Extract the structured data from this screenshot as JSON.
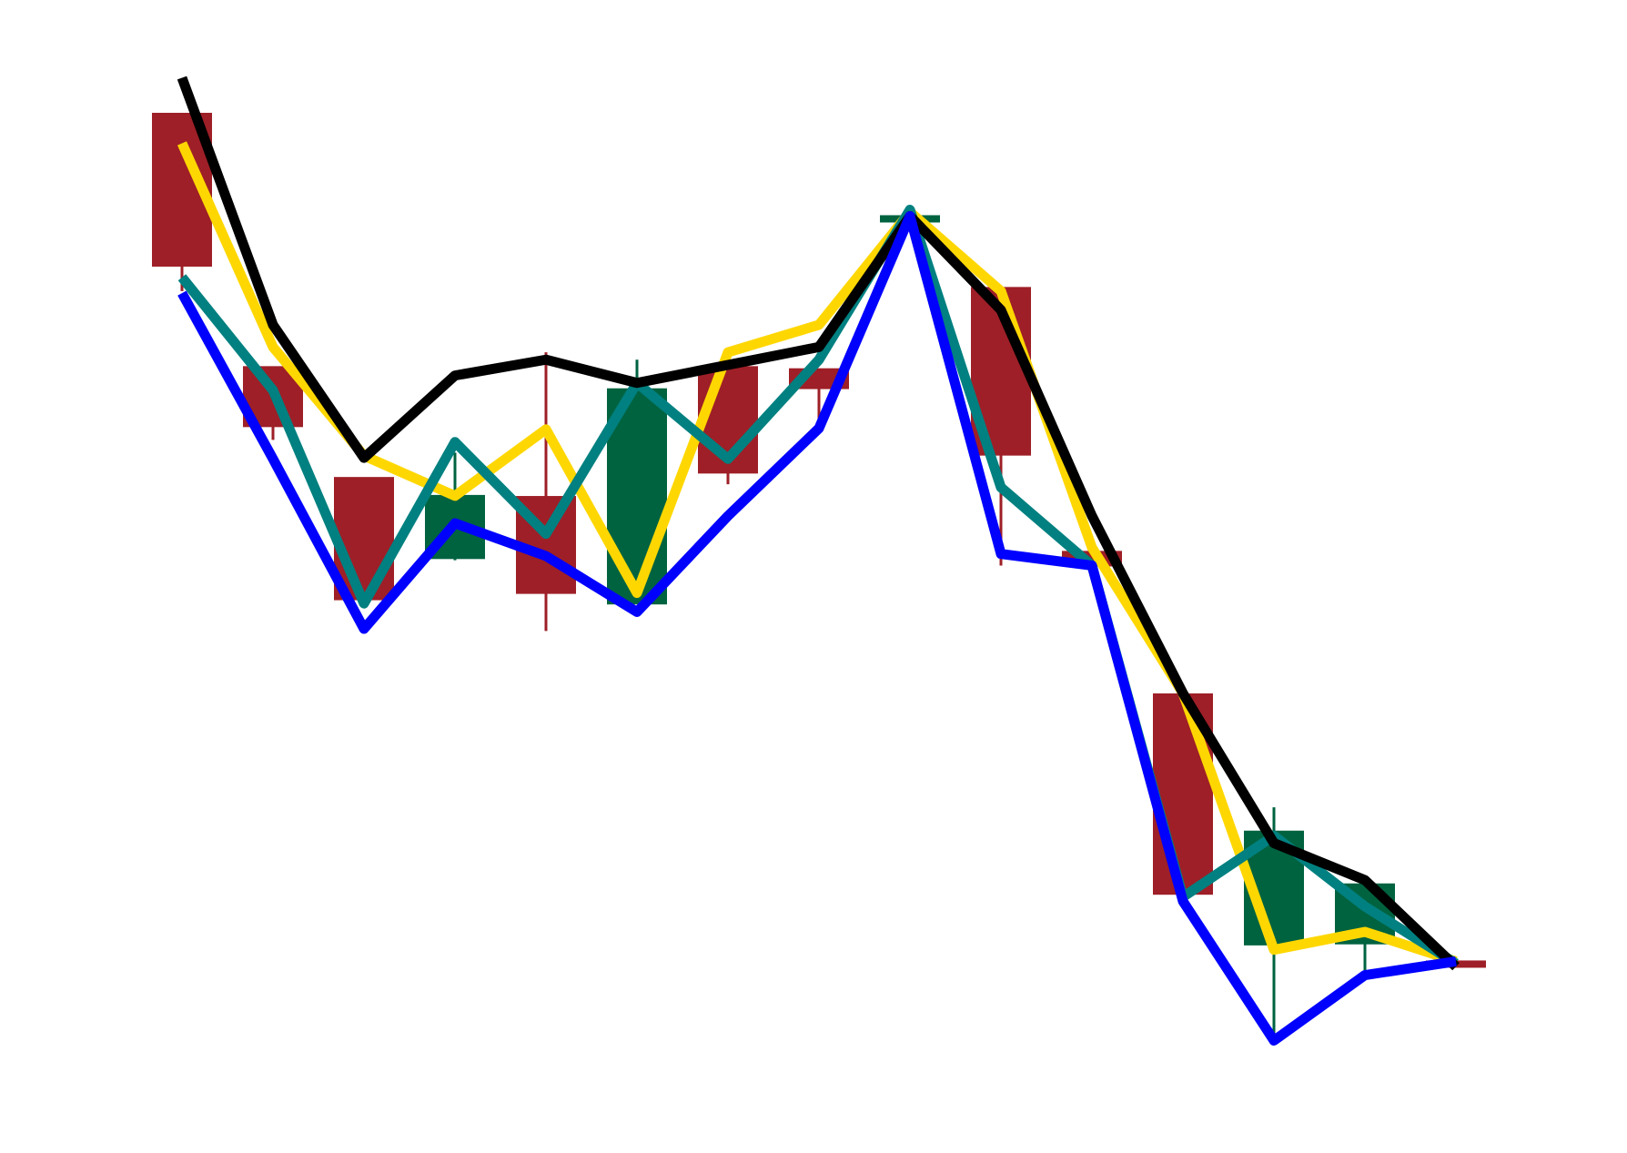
{
  "chart_data": {
    "type": "candlestick",
    "title": "",
    "xlabel": "",
    "ylabel": "",
    "axes_visible": false,
    "grid": false,
    "legend": "none",
    "ylim": [
      0,
      100
    ],
    "colors": {
      "up": "#006340",
      "down": "#9e1f27",
      "line_yellow": "#ffd700",
      "line_teal": "#008080",
      "line_black": "#000000",
      "line_blue": "#0000ff"
    },
    "candles": [
      {
        "open": 94.4,
        "high": 94.4,
        "low": 77.6,
        "close": 80.0
      },
      {
        "open": 70.4,
        "high": 70.4,
        "low": 63.5,
        "close": 64.8
      },
      {
        "open": 59.9,
        "high": 59.9,
        "low": 48.0,
        "close": 48.4
      },
      {
        "open": 52.3,
        "high": 62.3,
        "low": 52.1,
        "close": 58.2
      },
      {
        "open": 58.1,
        "high": 71.8,
        "low": 45.4,
        "close": 49.0
      },
      {
        "open": 48.0,
        "high": 71.1,
        "low": 48.0,
        "close": 68.3
      },
      {
        "open": 70.4,
        "high": 70.4,
        "low": 59.3,
        "close": 60.4
      },
      {
        "open": 70.2,
        "high": 70.2,
        "low": 65.5,
        "close": 68.4
      },
      {
        "open": 84.2,
        "high": 85.1,
        "low": 83.6,
        "close": 84.7
      },
      {
        "open": 77.9,
        "high": 77.9,
        "low": 51.6,
        "close": 62.1
      },
      {
        "open": 52.9,
        "high": 54.3,
        "low": 51.6,
        "close": 51.6
      },
      {
        "open": 39.4,
        "high": 39.4,
        "low": 20.5,
        "close": 20.5
      },
      {
        "open": 15.7,
        "high": 28.7,
        "low": 6.6,
        "close": 26.4
      },
      {
        "open": 15.8,
        "high": 21.2,
        "low": 12.3,
        "close": 21.4
      },
      {
        "open": 14.1,
        "high": 14.1,
        "low": 13.9,
        "close": 13.9
      }
    ],
    "series": [
      {
        "color": "#ffd700",
        "values": [
          91.6,
          72.3,
          62.0,
          58.2,
          64.5,
          49.0,
          71.8,
          74.4,
          85.1,
          77.6,
          53.3,
          39.5,
          15.2,
          16.9,
          14.1
        ]
      },
      {
        "color": "#008080",
        "values": [
          78.9,
          68.2,
          48.0,
          63.3,
          54.6,
          68.9,
          61.7,
          71.1,
          85.3,
          59.0,
          51.6,
          20.2,
          26.0,
          19.3,
          13.9
        ]
      },
      {
        "color": "#000000",
        "values": [
          97.8,
          74.4,
          61.8,
          69.6,
          71.1,
          68.9,
          70.6,
          72.3,
          84.7,
          75.8,
          56.3,
          39.5,
          25.3,
          21.8,
          13.6
        ]
      },
      {
        "color": "#0000ff",
        "values": [
          77.4,
          61.7,
          45.6,
          55.6,
          52.5,
          47.2,
          56.3,
          64.6,
          84.7,
          52.7,
          51.6,
          19.8,
          6.6,
          12.8,
          14.1
        ]
      }
    ]
  }
}
